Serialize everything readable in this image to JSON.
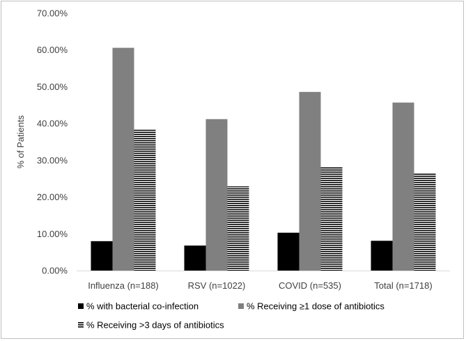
{
  "chart_data": {
    "type": "bar",
    "title": "",
    "xlabel": "",
    "ylabel": "% of Patients",
    "categories": [
      "Influenza (n=188)",
      "RSV (n=1022)",
      "COVID (n=535)",
      "Total (n=1718)"
    ],
    "ylim": [
      0,
      70
    ],
    "yticks": [
      "0.00%",
      "10.00%",
      "20.00%",
      "30.00%",
      "40.00%",
      "50.00%",
      "60.00%",
      "70.00%"
    ],
    "grid": false,
    "legend_position": "bottom",
    "series": [
      {
        "name": "% with bacterial co-infection",
        "values": [
          8.0,
          6.8,
          10.3,
          8.1
        ],
        "color": "#000000",
        "pattern": "solid"
      },
      {
        "name": "% Receiving ≥1 dose of antibiotics",
        "values": [
          60.6,
          41.2,
          48.6,
          45.7
        ],
        "color": "#808080",
        "pattern": "solid"
      },
      {
        "name": "% Receiving >3 days of antibiotics",
        "values": [
          38.3,
          22.9,
          28.2,
          26.5
        ],
        "color": "#000000",
        "pattern": "horizontal-stripes"
      }
    ]
  }
}
